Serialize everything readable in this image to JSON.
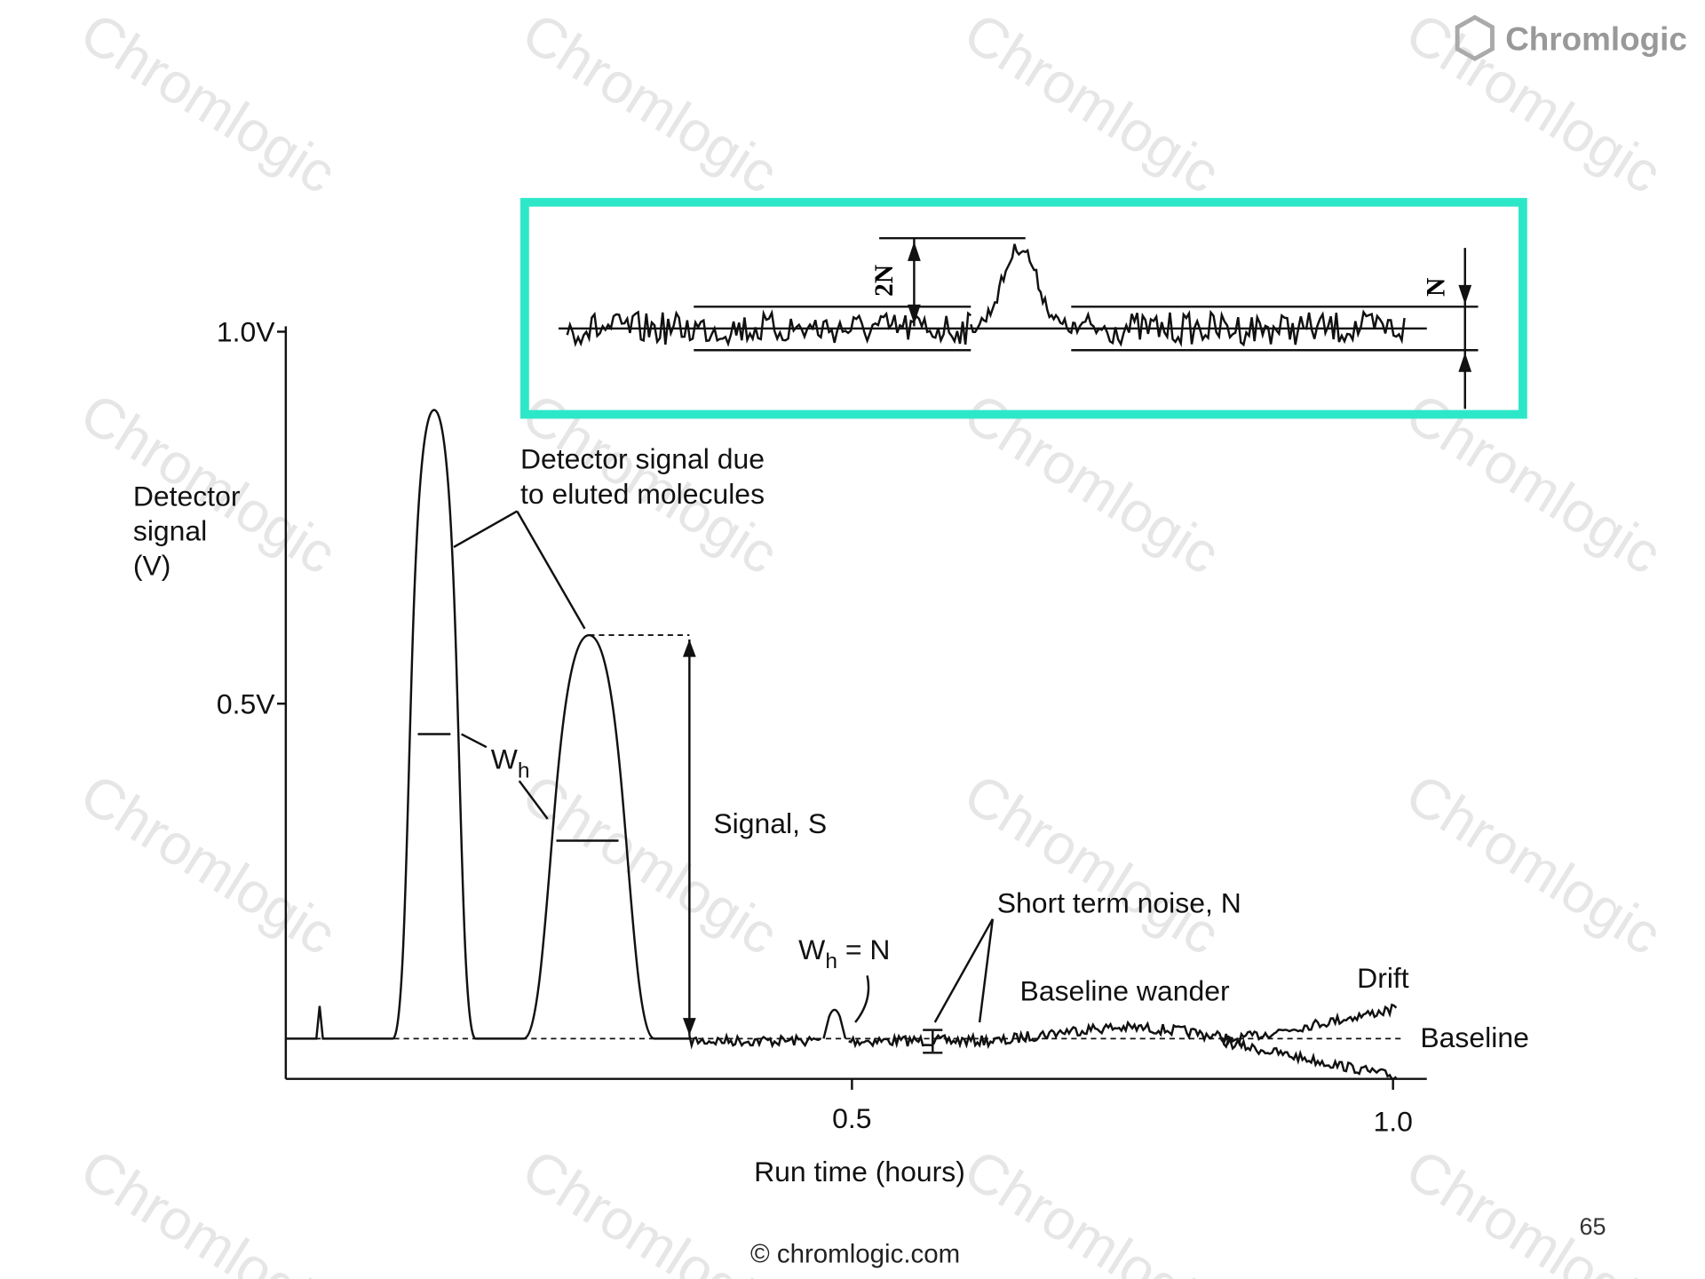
{
  "watermark": "Chromlogic",
  "logo": "Chromlogic",
  "y_axis": {
    "label_lines": [
      "Detector",
      "signal",
      "(V)"
    ],
    "ticks": [
      "1.0V",
      "0.5V"
    ]
  },
  "x_axis": {
    "label": "Run time (hours)",
    "ticks": [
      "0.5",
      "1.0"
    ]
  },
  "annotations": {
    "eluted": [
      "Detector signal due",
      "to eluted molecules"
    ],
    "width": {
      "main": "W",
      "sub": "h"
    },
    "signal": "Signal, S",
    "noise_peak": {
      "main": "W",
      "sub": "h",
      "rest": " = N"
    },
    "short_noise": "Short term noise, N",
    "wander": "Baseline wander",
    "drift": "Drift",
    "baseline": "Baseline"
  },
  "inset": {
    "two_n": "2N",
    "n": "N"
  },
  "footer": {
    "copyright": "© chromlogic.com",
    "page": "65"
  }
}
